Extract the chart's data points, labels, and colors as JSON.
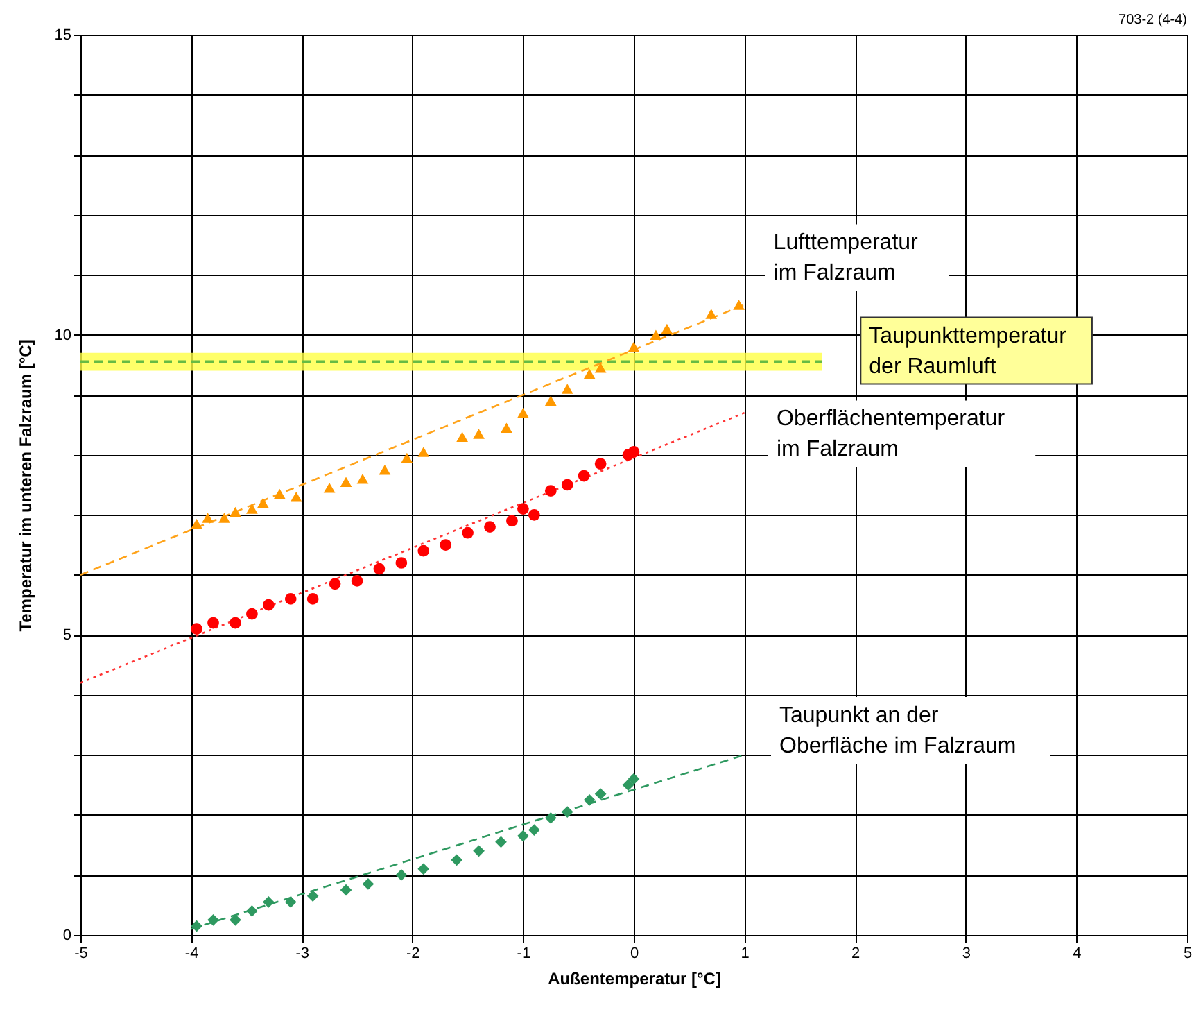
{
  "chart_data": {
    "type": "scatter",
    "xlabel": "Außentemperatur [°C]",
    "ylabel": "Temperatur im unteren Falzraum [°C]",
    "annotations": [
      "703-2 (4-4)"
    ],
    "xlim": [
      -5,
      5
    ],
    "xticks": [
      -5,
      -4,
      -3,
      -2,
      -1,
      0,
      1,
      2,
      3,
      4,
      5
    ],
    "ylim": [
      0,
      15
    ],
    "yticks": [
      0,
      {
        "value": 1,
        "label": null
      },
      {
        "value": 2,
        "label": null
      },
      {
        "value": 3,
        "label": null
      },
      {
        "value": 4,
        "label": null
      },
      5,
      {
        "value": 6,
        "label": null
      },
      {
        "value": 7,
        "label": null
      },
      {
        "value": 8,
        "label": null
      },
      {
        "value": 9,
        "label": null
      },
      10,
      {
        "value": 11,
        "label": null
      },
      {
        "value": 12,
        "label": null
      },
      {
        "value": 13,
        "label": null
      },
      {
        "value": 14,
        "label": null
      },
      15
    ],
    "grid": true,
    "legend": false,
    "series": [
      {
        "type": "line",
        "name": "Taupunkttemperatur\nder Raumluft",
        "color": "#66bb44",
        "line_style": "dashed",
        "x": [
          -5,
          1.7
        ],
        "values": [
          9.55,
          9.55
        ],
        "lower": [
          9.4,
          9.4
        ],
        "upper": [
          9.7,
          9.7
        ]
      },
      {
        "type": "line",
        "color": "#ffa31a",
        "line_style": "dashed",
        "x": [
          -5,
          1
        ],
        "values": [
          6.0,
          10.5
        ]
      },
      {
        "type": "line",
        "color": "#ff3333",
        "line_style": "dotted",
        "x": [
          -5,
          1
        ],
        "values": [
          4.2,
          8.7
        ]
      },
      {
        "type": "line",
        "color": "#2e9960",
        "line_style": "dashed",
        "x": [
          -4,
          1
        ],
        "values": [
          0.1,
          3.0
        ]
      },
      {
        "name": "Lufttemperatur\nim Falzraum",
        "color": "#ff9900",
        "marker": "triangle",
        "x": [
          -3.95,
          -3.85,
          -3.7,
          -3.6,
          -3.45,
          -3.35,
          -3.2,
          -3.05,
          -2.75,
          -2.6,
          -2.45,
          -2.25,
          -2.05,
          -1.9,
          -1.55,
          -1.4,
          -1.15,
          -1.0,
          -0.75,
          -0.6,
          -0.4,
          -0.3,
          0,
          0.2,
          0.3,
          0.7,
          0.95
        ],
        "values": [
          6.85,
          6.95,
          6.95,
          7.05,
          7.1,
          7.2,
          7.35,
          7.3,
          7.45,
          7.55,
          7.6,
          7.75,
          7.95,
          8.05,
          8.3,
          8.35,
          8.45,
          8.7,
          8.9,
          9.1,
          9.35,
          9.45,
          9.8,
          10.0,
          10.1,
          10.35,
          10.5
        ]
      },
      {
        "name": "Oberflächentemperatur\nim Falzraum",
        "color": "#ff0000",
        "marker": "circle",
        "x": [
          -3.95,
          -3.8,
          -3.6,
          -3.45,
          -3.3,
          -3.1,
          -2.9,
          -2.7,
          -2.5,
          -2.3,
          -2.1,
          -1.9,
          -1.7,
          -1.5,
          -1.3,
          -1.1,
          -1.0,
          -0.9,
          -0.75,
          -0.6,
          -0.45,
          -0.3,
          -0.05,
          0.0
        ],
        "values": [
          5.1,
          5.2,
          5.2,
          5.35,
          5.5,
          5.6,
          5.6,
          5.85,
          5.9,
          6.1,
          6.2,
          6.4,
          6.5,
          6.7,
          6.8,
          6.9,
          7.1,
          7.0,
          7.4,
          7.5,
          7.65,
          7.85,
          8.0,
          8.05
        ]
      },
      {
        "name": "Taupunkt an der\nOberfläche im Falzraum",
        "color": "#2e9960",
        "marker": "diamond",
        "x": [
          -3.95,
          -3.8,
          -3.6,
          -3.45,
          -3.3,
          -3.1,
          -2.9,
          -2.6,
          -2.4,
          -2.1,
          -1.9,
          -1.6,
          -1.4,
          -1.2,
          -1.0,
          -0.9,
          -0.75,
          -0.6,
          -0.4,
          -0.3,
          -0.05,
          0.0
        ],
        "values": [
          0.15,
          0.25,
          0.25,
          0.4,
          0.55,
          0.55,
          0.65,
          0.75,
          0.85,
          1.0,
          1.1,
          1.25,
          1.4,
          1.55,
          1.65,
          1.75,
          1.95,
          2.05,
          2.25,
          2.35,
          2.5,
          2.6
        ]
      }
    ]
  }
}
